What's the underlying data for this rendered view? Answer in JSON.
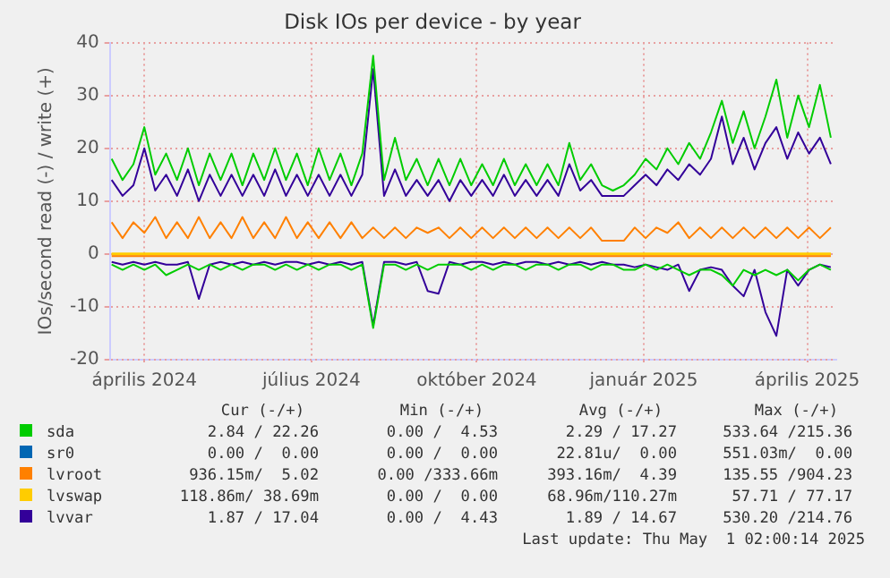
{
  "chart_data": {
    "type": "line",
    "title": "Disk IOs per device - by year",
    "ylabel": "IOs/second read (-) / write (+)",
    "x": [
      "2024-03-28",
      "2024-04-03",
      "2024-04-09",
      "2024-04-15",
      "2024-04-21",
      "2024-04-27",
      "2024-05-03",
      "2024-05-09",
      "2024-05-15",
      "2024-05-21",
      "2024-05-27",
      "2024-06-02",
      "2024-06-08",
      "2024-06-14",
      "2024-06-20",
      "2024-06-26",
      "2024-07-02",
      "2024-07-08",
      "2024-07-14",
      "2024-07-20",
      "2024-07-26",
      "2024-08-01",
      "2024-08-07",
      "2024-08-13",
      "2024-08-19",
      "2024-08-25",
      "2024-08-31",
      "2024-09-06",
      "2024-09-12",
      "2024-09-18",
      "2024-09-24",
      "2024-09-30",
      "2024-10-06",
      "2024-10-12",
      "2024-10-18",
      "2024-10-24",
      "2024-10-30",
      "2024-11-05",
      "2024-11-11",
      "2024-11-17",
      "2024-11-23",
      "2024-11-29",
      "2024-12-05",
      "2024-12-11",
      "2024-12-17",
      "2024-12-23",
      "2024-12-29",
      "2025-01-04",
      "2025-01-10",
      "2025-01-16",
      "2025-01-22",
      "2025-01-28",
      "2025-02-03",
      "2025-02-09",
      "2025-02-15",
      "2025-02-21",
      "2025-02-27",
      "2025-03-05",
      "2025-03-11",
      "2025-03-17",
      "2025-03-23",
      "2025-03-29",
      "2025-04-04",
      "2025-04-10",
      "2025-04-16",
      "2025-04-22",
      "2025-04-28"
    ],
    "series": [
      {
        "color": "#00cc00",
        "values": [
          -2,
          -3,
          -2,
          -3,
          -2,
          -4,
          -3,
          -2,
          -3,
          -2,
          -3,
          -2,
          -3,
          -2,
          -2,
          -3,
          -2,
          -3,
          -2,
          -3,
          -2,
          -2,
          -3,
          -2,
          -14,
          -2,
          -2,
          -3,
          -2,
          -3,
          -2,
          -2,
          -2,
          -3,
          -2,
          -3,
          -2,
          -2,
          -3,
          -2,
          -2,
          -3,
          -2,
          -2,
          -3,
          -2,
          -2,
          -3,
          -3,
          -2,
          -3,
          -2,
          -3,
          -4,
          -3,
          -3,
          -4,
          -6,
          -3,
          -4,
          -3,
          -4,
          -3,
          -5,
          -3,
          -2,
          -3
        ]
      },
      {
        "name": "sda",
        "color": "#00cc00",
        "values": [
          18,
          14,
          17,
          24,
          15,
          19,
          14,
          20,
          13,
          19,
          14,
          19,
          13,
          19,
          14,
          20,
          14,
          19,
          13,
          20,
          14,
          19,
          13,
          19,
          37.5,
          14,
          22,
          14,
          18,
          13,
          18,
          13,
          18,
          13,
          17,
          13,
          18,
          13,
          17,
          13,
          17,
          13,
          21,
          14,
          17,
          13,
          12,
          13,
          15,
          18,
          16,
          20,
          17,
          21,
          18,
          23,
          29,
          21,
          27,
          20,
          26,
          33,
          22,
          30,
          24,
          32,
          22
        ]
      },
      {
        "name": "sr0",
        "color": "#0066b3",
        "values": [
          null,
          null,
          null,
          null,
          null,
          null,
          null,
          null,
          null,
          null,
          null,
          null,
          null,
          null,
          null,
          null,
          null,
          null,
          null,
          null,
          null,
          null,
          null,
          null,
          null,
          null,
          null,
          null,
          null,
          null,
          null,
          null,
          null,
          null,
          null,
          null,
          null,
          null,
          null,
          null,
          null,
          null,
          null,
          null,
          null,
          null,
          null,
          null,
          null,
          null,
          null,
          null,
          null,
          null,
          null,
          null,
          null,
          null,
          null,
          null,
          null,
          null,
          null,
          null,
          null,
          null,
          null
        ]
      },
      {
        "color": "#ff8000",
        "x": [
          "2024-03-28",
          "2025-04-28"
        ],
        "values": [
          -0.4,
          -0.4
        ]
      },
      {
        "name": "lvroot",
        "color": "#ff8000",
        "values": [
          6,
          3,
          6,
          4,
          7,
          3,
          6,
          3,
          7,
          3,
          6,
          3,
          7,
          3,
          6,
          3,
          7,
          3,
          6,
          3,
          6,
          3,
          6,
          3,
          5,
          3,
          5,
          3,
          5,
          4,
          5,
          3,
          5,
          3,
          5,
          3,
          5,
          3,
          5,
          3,
          5,
          3,
          5,
          3,
          5,
          2.5,
          2.5,
          2.5,
          5,
          3,
          5,
          4,
          6,
          3,
          5,
          3,
          5,
          3,
          5,
          3,
          5,
          3,
          5,
          3,
          5,
          3,
          5
        ]
      },
      {
        "color": "#ffcc00",
        "x": [
          "2024-03-28",
          "2025-04-28"
        ],
        "values": [
          -0.1,
          -0.1
        ]
      },
      {
        "name": "lvswap",
        "color": "#ffcc00",
        "x": [
          "2024-03-28",
          "2025-04-28"
        ],
        "values": [
          0.1,
          0.1
        ]
      },
      {
        "color": "#330099",
        "values": [
          -1.5,
          -2,
          -1.5,
          -2,
          -1.5,
          -2,
          -2,
          -1.5,
          -8.5,
          -2,
          -1.5,
          -2,
          -1.5,
          -2,
          -1.5,
          -2,
          -1.5,
          -1.5,
          -2,
          -1.5,
          -2,
          -1.5,
          -2,
          -1.5,
          -13.5,
          -1.5,
          -1.5,
          -2,
          -1.5,
          -7,
          -7.5,
          -1.5,
          -2,
          -1.5,
          -1.5,
          -2,
          -1.5,
          -2,
          -1.5,
          -1.5,
          -2,
          -1.5,
          -2,
          -1.5,
          -2,
          -1.5,
          -2,
          -2,
          -2.5,
          -2,
          -2.5,
          -3,
          -2,
          -7,
          -3,
          -2.5,
          -3,
          -6,
          -8,
          -3,
          -11,
          -15.5,
          -3,
          -6,
          -3,
          -2,
          -2.5
        ]
      },
      {
        "name": "lvvar",
        "color": "#330099",
        "values": [
          14,
          11,
          13,
          20,
          12,
          15,
          11,
          16,
          10,
          15,
          11,
          15,
          11,
          15,
          11,
          16,
          11,
          15,
          11,
          15,
          11,
          15,
          11,
          15,
          35,
          11,
          16,
          11,
          14,
          11,
          14,
          10,
          14,
          11,
          14,
          11,
          15,
          11,
          14,
          11,
          14,
          11,
          17,
          12,
          14,
          11,
          11,
          11,
          13,
          15,
          13,
          16,
          14,
          17,
          15,
          18,
          26,
          17,
          22,
          16,
          21,
          24,
          18,
          23,
          19,
          22,
          17
        ]
      }
    ],
    "xlim": [
      "2024-03-27",
      "2025-05-01"
    ],
    "xticks": [
      {
        "value": "2024-04-15",
        "label": "április 2024"
      },
      {
        "value": "2024-07-16",
        "label": "július 2024"
      },
      {
        "value": "2024-10-15",
        "label": "október 2024"
      },
      {
        "value": "2025-01-15",
        "label": "január 2025"
      },
      {
        "value": "2025-04-15",
        "label": "április 2025"
      }
    ],
    "ylim": [
      -20,
      40
    ],
    "yticks": [
      -20,
      -10,
      0,
      10,
      20,
      30,
      40
    ],
    "grid": true,
    "legend": "bottom",
    "annotations": [
      "Cur (-/+)",
      "Min (-/+)",
      "Avg (-/+)",
      "Max (-/+)",
      "2.84 / 22.26",
      "0.00 /  4.53",
      "2.29 / 17.27",
      "533.64 /215.36",
      "0.00 /  0.00",
      "0.00 /  0.00",
      "22.81u/  0.00",
      "551.03m/  0.00",
      "936.15m/  5.02",
      "0.00 /333.66m",
      "393.16m/  4.39",
      "135.55 /904.23",
      "118.86m/ 38.69m",
      "0.00 /  0.00",
      "68.96m/110.27m",
      "57.71 / 77.17",
      "1.87 / 17.04",
      "0.00 /  4.43",
      "1.89 / 14.67",
      "530.20 /214.76",
      "Last update: Thu May  1 02:00:14 2025"
    ]
  }
}
